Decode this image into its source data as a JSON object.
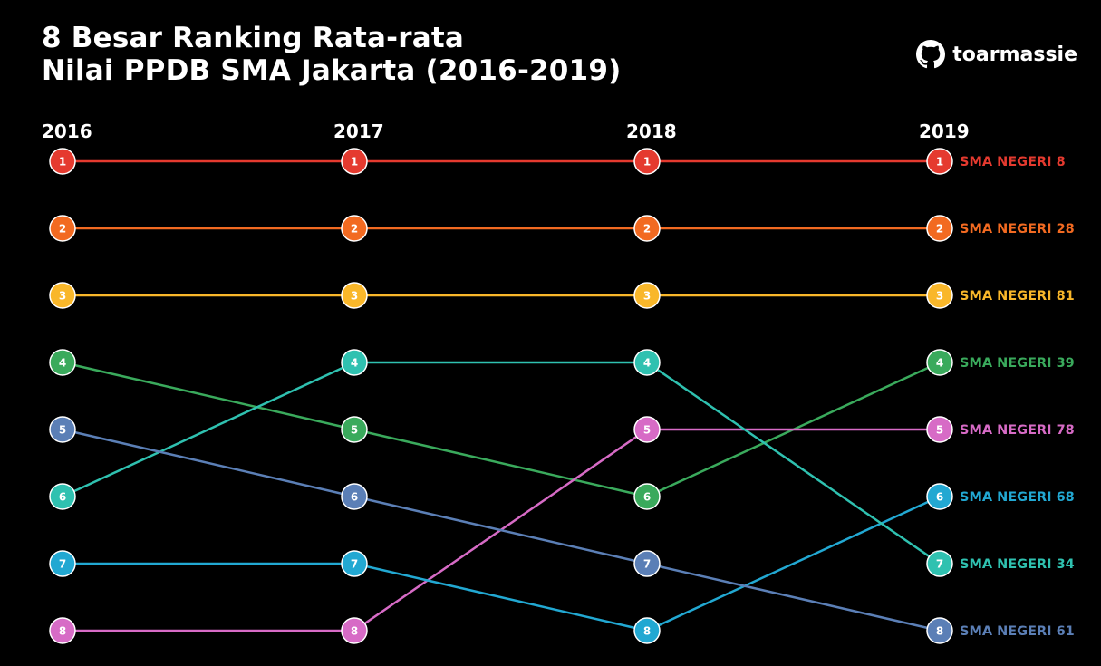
{
  "title": {
    "line1": "8 Besar Ranking Rata-rata",
    "line2": "Nilai PPDB SMA Jakarta (2016-2019)"
  },
  "brand": {
    "name": "toarmassie",
    "icon": "github-icon"
  },
  "chart_data": {
    "type": "bump",
    "title": "8 Besar Ranking Rata-rata Nilai PPDB SMA Jakarta (2016-2019)",
    "years": [
      "2016",
      "2017",
      "2018",
      "2019"
    ],
    "rank_range": [
      1,
      8
    ],
    "series": [
      {
        "name": "SMA NEGERI 8",
        "color": "#e53a2f",
        "ranks": [
          1,
          1,
          1,
          1
        ]
      },
      {
        "name": "SMA NEGERI 28",
        "color": "#f26a21",
        "ranks": [
          2,
          2,
          2,
          2
        ]
      },
      {
        "name": "SMA NEGERI 81",
        "color": "#f9b72a",
        "ranks": [
          3,
          3,
          3,
          3
        ]
      },
      {
        "name": "SMA NEGERI 39",
        "color": "#3aaa5c",
        "ranks": [
          4,
          5,
          6,
          4
        ]
      },
      {
        "name": "SMA NEGERI 78",
        "color": "#d76bc6",
        "ranks": [
          8,
          8,
          5,
          5
        ]
      },
      {
        "name": "SMA NEGERI 68",
        "color": "#22a8d2",
        "ranks": [
          7,
          7,
          8,
          6
        ]
      },
      {
        "name": "SMA NEGERI 34",
        "color": "#2fc1b0",
        "ranks": [
          6,
          4,
          4,
          7
        ]
      },
      {
        "name": "SMA NEGERI 61",
        "color": "#5b7fb6",
        "ranks": [
          5,
          6,
          7,
          8
        ]
      }
    ]
  }
}
